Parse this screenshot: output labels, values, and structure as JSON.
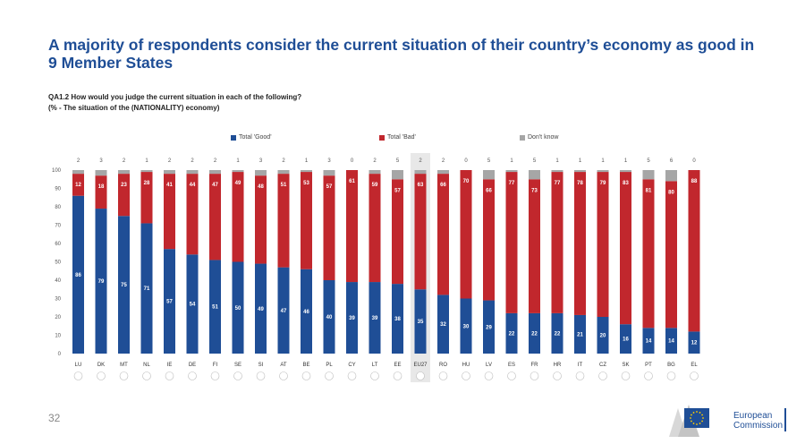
{
  "title": "A majority of respondents consider the current situation of their country’s economy as good in 9 Member States",
  "question": {
    "line1": "QA1.2 How would you judge the current situation in each of the following?",
    "line2": "(% - The situation of the (NATIONALITY) economy)"
  },
  "legend": {
    "good": "Total 'Good'",
    "bad": "Total 'Bad'",
    "dk": "Don't know"
  },
  "colors": {
    "good": "#1f4e96",
    "bad": "#c1272d",
    "dk": "#a6a6a6",
    "highlight": "#e8e8e8"
  },
  "chart_data": {
    "type": "bar",
    "stacked": true,
    "categories": [
      "LU",
      "DK",
      "MT",
      "NL",
      "IE",
      "DE",
      "FI",
      "SE",
      "SI",
      "AT",
      "BE",
      "PL",
      "CY",
      "LT",
      "EE",
      "EU27",
      "RO",
      "HU",
      "LV",
      "ES",
      "FR",
      "HR",
      "IT",
      "CZ",
      "SK",
      "PT",
      "BG",
      "EL"
    ],
    "highlight_category": "EU27",
    "series": [
      {
        "name": "Total 'Good'",
        "values": [
          86,
          79,
          75,
          71,
          57,
          54,
          51,
          50,
          49,
          47,
          46,
          40,
          39,
          39,
          38,
          35,
          32,
          30,
          29,
          22,
          22,
          22,
          21,
          20,
          16,
          14,
          14,
          12
        ]
      },
      {
        "name": "Total 'Bad'",
        "values": [
          12,
          18,
          23,
          28,
          41,
          44,
          47,
          49,
          48,
          51,
          53,
          57,
          61,
          59,
          57,
          63,
          66,
          70,
          66,
          77,
          73,
          77,
          78,
          79,
          83,
          81,
          80,
          88
        ]
      },
      {
        "name": "Don't know",
        "values": [
          2,
          3,
          2,
          1,
          2,
          2,
          2,
          1,
          3,
          2,
          1,
          3,
          0,
          2,
          5,
          2,
          2,
          0,
          5,
          1,
          5,
          1,
          1,
          1,
          1,
          5,
          6,
          0
        ]
      }
    ],
    "ylim": [
      0,
      100
    ],
    "yticks": [
      0,
      10,
      20,
      30,
      40,
      50,
      60,
      70,
      80,
      90,
      100
    ],
    "legend_position": "top"
  },
  "page_number": "32",
  "logo": {
    "line1": "European",
    "line2": "Commission"
  }
}
